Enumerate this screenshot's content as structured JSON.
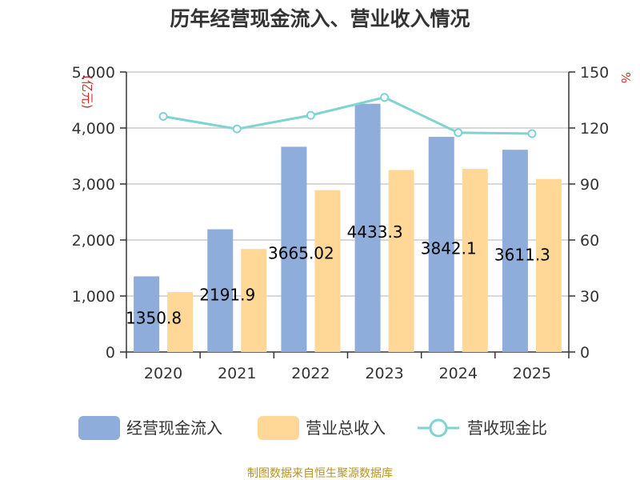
{
  "chart_data": {
    "type": "bar",
    "title": "历年经营现金流入、营业收入情况",
    "categories": [
      "2020",
      "2021",
      "2022",
      "2023",
      "2024",
      "2025"
    ],
    "series": [
      {
        "name": "经营现金流入",
        "axis": "left",
        "type": "bar",
        "color": "#8eaddb",
        "values": [
          1350.8,
          2191.9,
          3665.02,
          4433.3,
          3842.1,
          3611.3
        ]
      },
      {
        "name": "营业总收入",
        "axis": "left",
        "type": "bar",
        "color": "#ffd898",
        "values": [
          1070,
          1840,
          2890,
          3250,
          3270,
          3090
        ]
      },
      {
        "name": "营收现金比",
        "axis": "right",
        "type": "line",
        "color": "#7fd3d3",
        "values": [
          126.2,
          119.5,
          126.8,
          136.4,
          117.5,
          117.0
        ]
      }
    ],
    "data_labels": [
      "1350.8",
      "2191.9",
      "3665.02",
      "4433.3",
      "3842.1",
      "3611.3"
    ],
    "y_left": {
      "label": "(亿元)",
      "ylim": [
        0,
        5000
      ],
      "ticks": [
        "0",
        "1,000",
        "2,000",
        "3,000",
        "4,000",
        "5,000"
      ]
    },
    "y_right": {
      "label": "%",
      "ylim": [
        0,
        150
      ],
      "ticks": [
        "0",
        "30",
        "60",
        "90",
        "120",
        "150"
      ]
    },
    "grid": true,
    "legend": {
      "position": "bottom",
      "items": [
        "经营现金流入",
        "营业总收入",
        "营收现金比"
      ]
    }
  },
  "source": "制图数据来自恒生聚源数据库"
}
